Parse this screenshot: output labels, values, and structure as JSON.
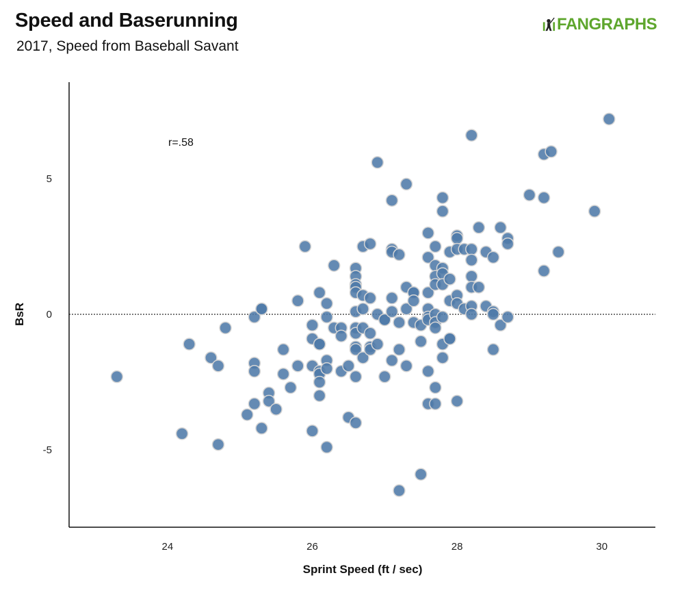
{
  "header": {
    "title": "Speed and Baserunning",
    "subtitle": "2017, Speed from Baseball Savant",
    "logo_text": "FANGRAPHS"
  },
  "colors": {
    "point": "#4f7aa8",
    "logo": "#5ea62d"
  },
  "chart_data": {
    "type": "scatter",
    "title": "Speed and Baserunning",
    "subtitle": "2017, Speed from Baseball Savant",
    "xlabel": "Sprint Speed (ft / sec)",
    "ylabel": "BsR",
    "xlim": [
      22.64,
      30.74
    ],
    "ylim": [
      -7.85,
      8.56
    ],
    "xticks": [
      24,
      26,
      28,
      30
    ],
    "yticks": [
      -5,
      0,
      5
    ],
    "xtick_labels": [
      "24",
      "26",
      "28",
      "30"
    ],
    "ytick_labels": [
      "-5",
      "0",
      "5"
    ],
    "reference_line": {
      "y": 0,
      "style": "dotted"
    },
    "annotation": "r=.58",
    "grid": false,
    "points": [
      [
        23.3,
        -2.3
      ],
      [
        24.2,
        -4.4
      ],
      [
        24.3,
        -1.1
      ],
      [
        24.6,
        -1.6
      ],
      [
        24.7,
        -1.9
      ],
      [
        24.7,
        -4.8
      ],
      [
        24.8,
        -0.5
      ],
      [
        25.1,
        -3.7
      ],
      [
        25.2,
        -0.1
      ],
      [
        25.2,
        -1.8
      ],
      [
        25.2,
        -2.1
      ],
      [
        25.2,
        -3.3
      ],
      [
        25.3,
        0.2
      ],
      [
        25.3,
        0.2
      ],
      [
        25.3,
        -4.2
      ],
      [
        25.4,
        -2.9
      ],
      [
        25.4,
        -3.2
      ],
      [
        25.5,
        -3.5
      ],
      [
        25.6,
        -1.3
      ],
      [
        25.6,
        -2.2
      ],
      [
        25.7,
        -2.7
      ],
      [
        25.8,
        0.5
      ],
      [
        25.8,
        -1.9
      ],
      [
        25.9,
        2.5
      ],
      [
        26.0,
        -0.4
      ],
      [
        26.0,
        -0.9
      ],
      [
        26.0,
        -1.9
      ],
      [
        26.0,
        -4.3
      ],
      [
        26.1,
        0.8
      ],
      [
        26.1,
        -1.1
      ],
      [
        26.1,
        -1.1
      ],
      [
        26.1,
        -2.1
      ],
      [
        26.1,
        -2.2
      ],
      [
        26.1,
        -2.5
      ],
      [
        26.1,
        -3.0
      ],
      [
        26.2,
        0.4
      ],
      [
        26.2,
        -0.1
      ],
      [
        26.2,
        -1.7
      ],
      [
        26.2,
        -2.0
      ],
      [
        26.2,
        -4.9
      ],
      [
        26.3,
        1.8
      ],
      [
        26.3,
        -0.5
      ],
      [
        26.4,
        -0.5
      ],
      [
        26.4,
        -0.8
      ],
      [
        26.4,
        -2.1
      ],
      [
        26.5,
        -1.9
      ],
      [
        26.5,
        -3.8
      ],
      [
        26.6,
        1.7
      ],
      [
        26.6,
        1.4
      ],
      [
        26.6,
        1.1
      ],
      [
        26.6,
        1.0
      ],
      [
        26.6,
        0.8
      ],
      [
        26.6,
        0.1
      ],
      [
        26.6,
        -0.5
      ],
      [
        26.6,
        -0.7
      ],
      [
        26.6,
        -1.2
      ],
      [
        26.6,
        -1.3
      ],
      [
        26.6,
        -2.3
      ],
      [
        26.6,
        -4.0
      ],
      [
        26.7,
        2.5
      ],
      [
        26.7,
        0.7
      ],
      [
        26.7,
        0.2
      ],
      [
        26.7,
        -0.5
      ],
      [
        26.7,
        -1.6
      ],
      [
        26.8,
        2.6
      ],
      [
        26.8,
        0.6
      ],
      [
        26.8,
        -0.7
      ],
      [
        26.8,
        -1.2
      ],
      [
        26.8,
        -1.3
      ],
      [
        26.9,
        0.0
      ],
      [
        26.9,
        -1.1
      ],
      [
        26.9,
        5.6
      ],
      [
        27.0,
        -0.2
      ],
      [
        27.0,
        -0.2
      ],
      [
        27.0,
        -2.3
      ],
      [
        27.1,
        4.2
      ],
      [
        27.1,
        2.4
      ],
      [
        27.1,
        2.3
      ],
      [
        27.1,
        0.6
      ],
      [
        27.1,
        0.1
      ],
      [
        27.1,
        -1.7
      ],
      [
        27.2,
        2.2
      ],
      [
        27.2,
        -0.3
      ],
      [
        27.2,
        -1.3
      ],
      [
        27.2,
        -6.5
      ],
      [
        27.3,
        4.8
      ],
      [
        27.3,
        1.0
      ],
      [
        27.3,
        0.2
      ],
      [
        27.3,
        -1.9
      ],
      [
        27.4,
        0.8
      ],
      [
        27.4,
        0.8
      ],
      [
        27.4,
        0.5
      ],
      [
        27.4,
        -0.3
      ],
      [
        27.5,
        -0.4
      ],
      [
        27.5,
        -1.0
      ],
      [
        27.5,
        -5.9
      ],
      [
        27.6,
        3.0
      ],
      [
        27.6,
        2.1
      ],
      [
        27.6,
        0.8
      ],
      [
        27.6,
        0.2
      ],
      [
        27.6,
        -0.1
      ],
      [
        27.6,
        -0.2
      ],
      [
        27.6,
        -2.1
      ],
      [
        27.6,
        -3.3
      ],
      [
        27.7,
        2.5
      ],
      [
        27.7,
        1.8
      ],
      [
        27.7,
        1.4
      ],
      [
        27.7,
        1.1
      ],
      [
        27.7,
        0.0
      ],
      [
        27.7,
        -0.3
      ],
      [
        27.7,
        -0.5
      ],
      [
        27.7,
        -2.7
      ],
      [
        27.7,
        -3.3
      ],
      [
        27.8,
        4.3
      ],
      [
        27.8,
        3.8
      ],
      [
        27.8,
        1.7
      ],
      [
        27.8,
        1.5
      ],
      [
        27.8,
        1.1
      ],
      [
        27.8,
        -0.1
      ],
      [
        27.8,
        -1.1
      ],
      [
        27.8,
        -1.6
      ],
      [
        27.9,
        2.3
      ],
      [
        27.9,
        1.3
      ],
      [
        27.9,
        0.5
      ],
      [
        27.9,
        -0.9
      ],
      [
        27.9,
        -0.9
      ],
      [
        28.0,
        2.9
      ],
      [
        28.0,
        2.8
      ],
      [
        28.0,
        2.4
      ],
      [
        28.0,
        0.7
      ],
      [
        28.0,
        0.4
      ],
      [
        28.0,
        -3.2
      ],
      [
        28.1,
        2.4
      ],
      [
        28.1,
        0.2
      ],
      [
        28.2,
        6.6
      ],
      [
        28.2,
        2.4
      ],
      [
        28.2,
        2.0
      ],
      [
        28.2,
        1.4
      ],
      [
        28.2,
        1.0
      ],
      [
        28.2,
        0.3
      ],
      [
        28.2,
        0.0
      ],
      [
        28.3,
        3.2
      ],
      [
        28.3,
        1.0
      ],
      [
        28.4,
        2.3
      ],
      [
        28.4,
        0.3
      ],
      [
        28.5,
        2.1
      ],
      [
        28.5,
        0.1
      ],
      [
        28.5,
        0.0
      ],
      [
        28.5,
        -1.3
      ],
      [
        28.6,
        3.2
      ],
      [
        28.6,
        -0.4
      ],
      [
        28.7,
        2.8
      ],
      [
        28.7,
        2.6
      ],
      [
        28.7,
        -0.1
      ],
      [
        29.0,
        4.4
      ],
      [
        29.2,
        5.9
      ],
      [
        29.2,
        4.3
      ],
      [
        29.2,
        1.6
      ],
      [
        29.3,
        6.0
      ],
      [
        29.4,
        2.3
      ],
      [
        29.9,
        3.8
      ],
      [
        30.1,
        7.2
      ]
    ]
  }
}
